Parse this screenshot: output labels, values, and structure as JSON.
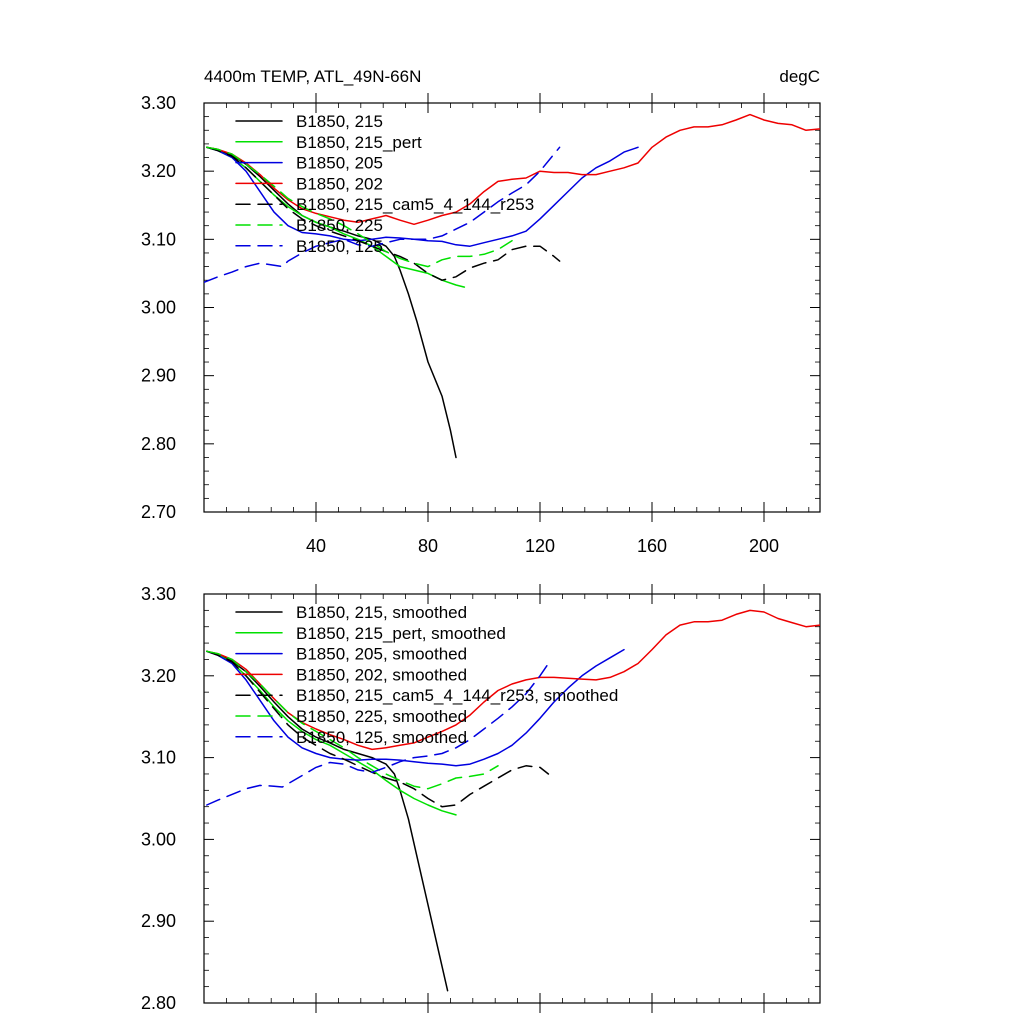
{
  "chart_data": [
    {
      "type": "line",
      "title": "4400m TEMP, ATL_49N-66N",
      "units": "degC",
      "xlim": [
        0,
        220
      ],
      "ylim": [
        2.7,
        3.3
      ],
      "x_ticks": [
        40,
        80,
        120,
        160,
        200
      ],
      "x_tick_labels": [
        "40",
        "80",
        "120",
        "160",
        "200"
      ],
      "y_ticks": [
        2.7,
        2.8,
        2.9,
        3.0,
        3.1,
        3.2,
        3.3
      ],
      "y_tick_labels": [
        "2.70",
        "2.80",
        "2.90",
        "3.00",
        "3.10",
        "3.20",
        "3.30"
      ],
      "legend_position": "top-left",
      "series": [
        {
          "name": "B1850, 215",
          "color": "#000000",
          "dash": "solid",
          "x": [
            1,
            5,
            10,
            15,
            20,
            25,
            30,
            35,
            40,
            45,
            50,
            55,
            60,
            65,
            68,
            70,
            73,
            76,
            80,
            85,
            88,
            90
          ],
          "y": [
            3.235,
            3.232,
            3.223,
            3.21,
            3.192,
            3.172,
            3.152,
            3.135,
            3.125,
            3.118,
            3.112,
            3.105,
            3.1,
            3.09,
            3.075,
            3.055,
            3.02,
            2.98,
            2.92,
            2.87,
            2.82,
            2.78
          ]
        },
        {
          "name": "B1850, 215_pert",
          "color": "#00e000",
          "dash": "solid",
          "x": [
            1,
            5,
            10,
            15,
            20,
            25,
            30,
            35,
            40,
            45,
            50,
            55,
            60,
            65,
            70,
            75,
            80,
            85,
            90,
            93
          ],
          "y": [
            3.235,
            3.23,
            3.22,
            3.205,
            3.185,
            3.165,
            3.148,
            3.135,
            3.125,
            3.118,
            3.108,
            3.1,
            3.09,
            3.075,
            3.06,
            3.055,
            3.05,
            3.04,
            3.033,
            3.03
          ]
        },
        {
          "name": "B1850, 205",
          "color": "#0000e0",
          "dash": "solid",
          "x": [
            1,
            5,
            10,
            15,
            20,
            25,
            30,
            35,
            40,
            45,
            50,
            55,
            60,
            65,
            70,
            75,
            80,
            85,
            90,
            95,
            100,
            105,
            110,
            115,
            120,
            125,
            130,
            135,
            140,
            145,
            150,
            155
          ],
          "y": [
            3.235,
            3.23,
            3.22,
            3.2,
            3.17,
            3.14,
            3.12,
            3.11,
            3.108,
            3.105,
            3.1,
            3.098,
            3.1,
            3.103,
            3.102,
            3.1,
            3.098,
            3.097,
            3.092,
            3.09,
            3.095,
            3.1,
            3.105,
            3.112,
            3.13,
            3.15,
            3.17,
            3.19,
            3.205,
            3.215,
            3.228,
            3.235
          ]
        },
        {
          "name": "B1850, 202",
          "color": "#ee0000",
          "dash": "solid",
          "x": [
            1,
            5,
            10,
            15,
            20,
            25,
            30,
            35,
            40,
            45,
            50,
            55,
            60,
            65,
            70,
            75,
            80,
            85,
            90,
            95,
            100,
            105,
            110,
            115,
            120,
            125,
            130,
            135,
            140,
            145,
            150,
            155,
            160,
            165,
            170,
            175,
            180,
            185,
            190,
            195,
            200,
            205,
            210,
            215,
            220
          ],
          "y": [
            3.235,
            3.232,
            3.225,
            3.212,
            3.195,
            3.175,
            3.158,
            3.145,
            3.138,
            3.133,
            3.128,
            3.125,
            3.13,
            3.135,
            3.128,
            3.122,
            3.128,
            3.135,
            3.14,
            3.152,
            3.17,
            3.185,
            3.188,
            3.19,
            3.2,
            3.198,
            3.198,
            3.195,
            3.195,
            3.2,
            3.205,
            3.212,
            3.235,
            3.25,
            3.26,
            3.265,
            3.265,
            3.268,
            3.275,
            3.283,
            3.275,
            3.27,
            3.268,
            3.26,
            3.262
          ]
        },
        {
          "name": "B1850, 215_cam5_4_144_r253",
          "color": "#000000",
          "dash": "dashed",
          "x": [
            1,
            5,
            10,
            15,
            20,
            25,
            30,
            35,
            40,
            45,
            50,
            55,
            60,
            65,
            70,
            75,
            80,
            85,
            90,
            95,
            100,
            105,
            110,
            115,
            120,
            125,
            127
          ],
          "y": [
            3.235,
            3.23,
            3.222,
            3.205,
            3.185,
            3.165,
            3.145,
            3.13,
            3.12,
            3.112,
            3.105,
            3.098,
            3.09,
            3.082,
            3.075,
            3.065,
            3.05,
            3.04,
            3.045,
            3.058,
            3.065,
            3.07,
            3.085,
            3.09,
            3.09,
            3.075,
            3.068
          ]
        },
        {
          "name": "B1850, 225",
          "color": "#00e000",
          "dash": "dashed",
          "x": [
            1,
            5,
            10,
            15,
            20,
            25,
            30,
            35,
            40,
            45,
            50,
            55,
            60,
            65,
            70,
            75,
            80,
            85,
            90,
            95,
            100,
            105,
            110
          ],
          "y": [
            3.235,
            3.232,
            3.225,
            3.21,
            3.195,
            3.178,
            3.16,
            3.148,
            3.138,
            3.13,
            3.12,
            3.108,
            3.095,
            3.082,
            3.072,
            3.065,
            3.06,
            3.07,
            3.075,
            3.075,
            3.078,
            3.085,
            3.098
          ]
        },
        {
          "name": "B1850, 125",
          "color": "#0000e0",
          "dash": "dashed",
          "x": [
            0,
            5,
            10,
            15,
            20,
            25,
            28,
            30,
            35,
            40,
            45,
            50,
            55,
            60,
            65,
            70,
            75,
            80,
            85,
            90,
            95,
            100,
            105,
            110,
            115,
            120,
            125,
            127
          ],
          "y": [
            3.037,
            3.045,
            3.052,
            3.06,
            3.065,
            3.062,
            3.06,
            3.068,
            3.08,
            3.09,
            3.095,
            3.1,
            3.092,
            3.09,
            3.095,
            3.1,
            3.1,
            3.1,
            3.105,
            3.115,
            3.125,
            3.14,
            3.155,
            3.168,
            3.18,
            3.2,
            3.225,
            3.235
          ]
        }
      ]
    },
    {
      "type": "line",
      "xlim": [
        0,
        220
      ],
      "ylim": [
        2.8,
        3.3
      ],
      "y_ticks": [
        2.8,
        2.9,
        3.0,
        3.1,
        3.2,
        3.3
      ],
      "y_tick_labels": [
        "2.80",
        "2.90",
        "3.00",
        "3.10",
        "3.20",
        "3.30"
      ],
      "x_ticks": [
        40,
        80,
        120,
        160,
        200
      ],
      "legend_position": "top-left",
      "series": [
        {
          "name": "B1850, 215, smoothed",
          "color": "#000000",
          "dash": "solid",
          "x": [
            1,
            5,
            10,
            15,
            20,
            25,
            30,
            35,
            40,
            45,
            50,
            55,
            60,
            65,
            68,
            70,
            73,
            76,
            80,
            84,
            87
          ],
          "y": [
            3.23,
            3.226,
            3.218,
            3.205,
            3.187,
            3.168,
            3.15,
            3.135,
            3.125,
            3.118,
            3.11,
            3.105,
            3.1,
            3.092,
            3.08,
            3.06,
            3.025,
            2.98,
            2.92,
            2.86,
            2.815
          ]
        },
        {
          "name": "B1850, 215_pert, smoothed",
          "color": "#00e000",
          "dash": "solid",
          "x": [
            1,
            5,
            10,
            15,
            20,
            25,
            30,
            35,
            40,
            45,
            50,
            55,
            60,
            65,
            70,
            75,
            80,
            85,
            90
          ],
          "y": [
            3.23,
            3.226,
            3.216,
            3.2,
            3.182,
            3.162,
            3.145,
            3.132,
            3.122,
            3.115,
            3.105,
            3.095,
            3.085,
            3.072,
            3.06,
            3.05,
            3.042,
            3.035,
            3.03
          ]
        },
        {
          "name": "B1850, 205, smoothed",
          "color": "#0000e0",
          "dash": "solid",
          "x": [
            1,
            5,
            10,
            15,
            20,
            25,
            30,
            35,
            40,
            45,
            50,
            55,
            60,
            65,
            70,
            75,
            80,
            85,
            90,
            95,
            100,
            105,
            110,
            115,
            120,
            125,
            130,
            135,
            140,
            145,
            150
          ],
          "y": [
            3.23,
            3.225,
            3.215,
            3.195,
            3.17,
            3.145,
            3.125,
            3.112,
            3.105,
            3.1,
            3.098,
            3.097,
            3.098,
            3.098,
            3.097,
            3.095,
            3.093,
            3.092,
            3.09,
            3.092,
            3.098,
            3.105,
            3.115,
            3.13,
            3.148,
            3.168,
            3.185,
            3.2,
            3.212,
            3.222,
            3.232
          ]
        },
        {
          "name": "B1850, 202, smoothed",
          "color": "#ee0000",
          "dash": "solid",
          "x": [
            1,
            5,
            10,
            15,
            20,
            25,
            30,
            35,
            40,
            45,
            50,
            55,
            60,
            65,
            70,
            75,
            80,
            85,
            90,
            95,
            100,
            105,
            110,
            115,
            120,
            125,
            130,
            135,
            140,
            145,
            150,
            155,
            160,
            165,
            170,
            175,
            180,
            185,
            190,
            195,
            200,
            205,
            210,
            215,
            220
          ],
          "y": [
            3.23,
            3.227,
            3.22,
            3.208,
            3.19,
            3.172,
            3.155,
            3.143,
            3.135,
            3.128,
            3.122,
            3.115,
            3.11,
            3.112,
            3.115,
            3.118,
            3.125,
            3.132,
            3.14,
            3.152,
            3.168,
            3.182,
            3.19,
            3.195,
            3.198,
            3.198,
            3.197,
            3.196,
            3.195,
            3.198,
            3.205,
            3.215,
            3.232,
            3.25,
            3.262,
            3.266,
            3.266,
            3.268,
            3.275,
            3.28,
            3.278,
            3.27,
            3.265,
            3.26,
            3.262
          ]
        },
        {
          "name": "B1850, 215_cam5_4_144_r253, smoothed",
          "color": "#000000",
          "dash": "dashed",
          "x": [
            1,
            5,
            10,
            15,
            20,
            25,
            30,
            35,
            40,
            45,
            50,
            55,
            60,
            65,
            70,
            75,
            80,
            85,
            90,
            95,
            100,
            105,
            110,
            115,
            120,
            123
          ],
          "y": [
            3.23,
            3.225,
            3.217,
            3.2,
            3.18,
            3.16,
            3.14,
            3.125,
            3.115,
            3.105,
            3.098,
            3.09,
            3.082,
            3.075,
            3.07,
            3.062,
            3.05,
            3.04,
            3.042,
            3.055,
            3.065,
            3.075,
            3.085,
            3.09,
            3.088,
            3.08
          ]
        },
        {
          "name": "B1850, 225, smoothed",
          "color": "#00e000",
          "dash": "dashed",
          "x": [
            1,
            5,
            10,
            15,
            20,
            25,
            30,
            35,
            40,
            45,
            50,
            55,
            60,
            65,
            70,
            75,
            80,
            85,
            90,
            95,
            100,
            105
          ],
          "y": [
            3.23,
            3.227,
            3.22,
            3.205,
            3.19,
            3.172,
            3.155,
            3.142,
            3.132,
            3.122,
            3.112,
            3.1,
            3.09,
            3.08,
            3.072,
            3.065,
            3.062,
            3.068,
            3.075,
            3.077,
            3.08,
            3.09
          ]
        },
        {
          "name": "B1850, 125, smoothed",
          "color": "#0000e0",
          "dash": "dashed",
          "x": [
            1,
            5,
            10,
            15,
            20,
            25,
            28,
            30,
            35,
            40,
            45,
            50,
            55,
            60,
            65,
            70,
            75,
            80,
            85,
            90,
            95,
            100,
            105,
            110,
            115,
            120,
            123
          ],
          "y": [
            3.042,
            3.048,
            3.055,
            3.062,
            3.066,
            3.065,
            3.064,
            3.068,
            3.078,
            3.088,
            3.094,
            3.092,
            3.085,
            3.082,
            3.088,
            3.095,
            3.1,
            3.102,
            3.105,
            3.112,
            3.122,
            3.135,
            3.148,
            3.162,
            3.178,
            3.2,
            3.215
          ]
        }
      ]
    }
  ]
}
